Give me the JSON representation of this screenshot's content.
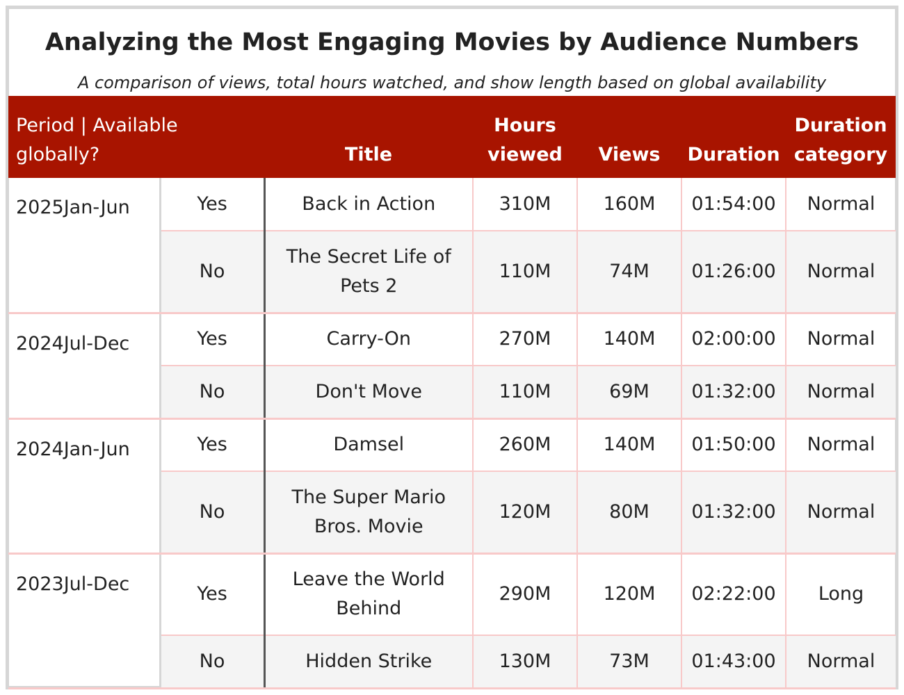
{
  "chart_data": {
    "type": "table",
    "title": "Analyzing the Most Engaging Movies by Audience Numbers",
    "subtitle": "A comparison of views, total hours watched, and show length based on global availability",
    "columns": [
      "Period | Available globally?",
      "Title",
      "Hours viewed",
      "Views",
      "Duration",
      "Duration category"
    ],
    "groups": [
      {
        "period": "2025Jan-Jun",
        "rows": [
          {
            "available": "Yes",
            "title": "Back in Action",
            "hours": "310M",
            "views": "160M",
            "duration": "01:54:00",
            "category": "Normal"
          },
          {
            "available": "No",
            "title": "The Secret Life of Pets 2",
            "hours": "110M",
            "views": "74M",
            "duration": "01:26:00",
            "category": "Normal"
          }
        ]
      },
      {
        "period": "2024Jul-Dec",
        "rows": [
          {
            "available": "Yes",
            "title": "Carry-On",
            "hours": "270M",
            "views": "140M",
            "duration": "02:00:00",
            "category": "Normal"
          },
          {
            "available": "No",
            "title": "Don't Move",
            "hours": "110M",
            "views": "69M",
            "duration": "01:32:00",
            "category": "Normal"
          }
        ]
      },
      {
        "period": "2024Jan-Jun",
        "rows": [
          {
            "available": "Yes",
            "title": "Damsel",
            "hours": "260M",
            "views": "140M",
            "duration": "01:50:00",
            "category": "Normal"
          },
          {
            "available": "No",
            "title": "The Super Mario Bros. Movie",
            "hours": "120M",
            "views": "80M",
            "duration": "01:32:00",
            "category": "Normal"
          }
        ]
      },
      {
        "period": "2023Jul-Dec",
        "rows": [
          {
            "available": "Yes",
            "title": "Leave the World Behind",
            "hours": "290M",
            "views": "120M",
            "duration": "02:22:00",
            "category": "Long"
          },
          {
            "available": "No",
            "title": "Hidden Strike",
            "hours": "130M",
            "views": "73M",
            "duration": "01:43:00",
            "category": "Normal"
          }
        ]
      }
    ]
  },
  "colors": {
    "header_bg": "#a81400",
    "header_text": "#ffffff",
    "row_alt_bg": "#f4f4f4",
    "grid_line": "#f8c9c9",
    "frame_border": "#d6d6d6",
    "separator": "#555555"
  }
}
